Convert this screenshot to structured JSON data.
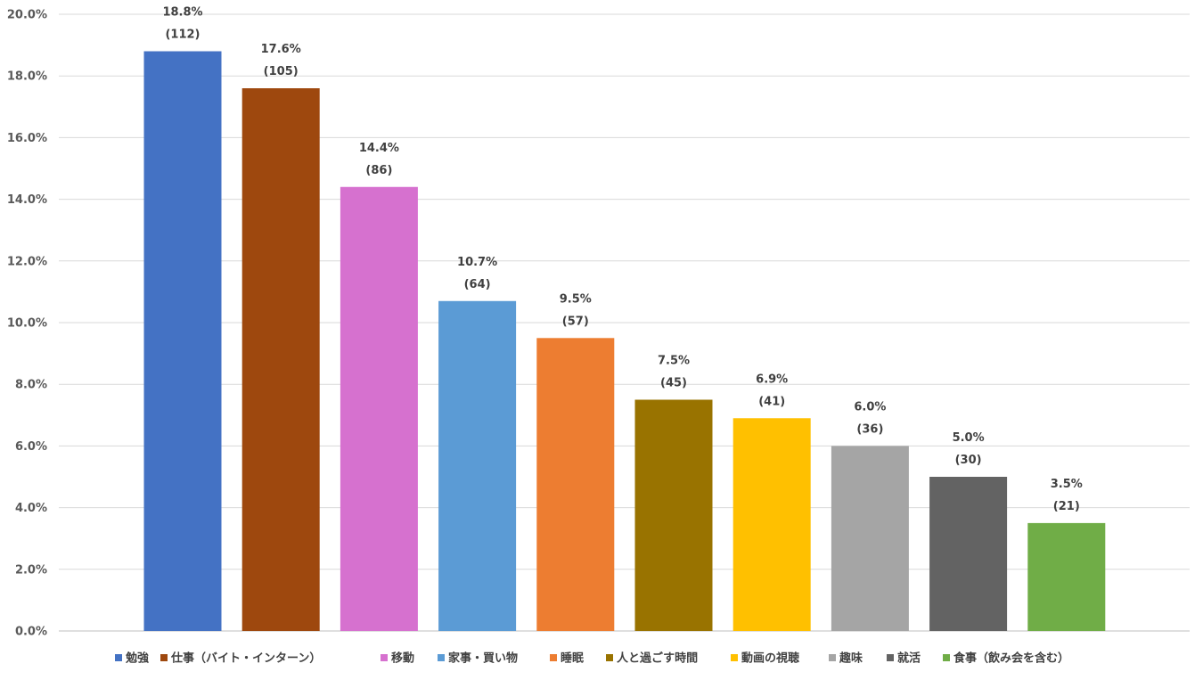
{
  "chart_data": {
    "type": "bar",
    "categories": [
      "勉強",
      "仕事（バイト・インターン）",
      "移動",
      "家事・買い物",
      "睡眠",
      "人と過ごす時間",
      "動画の視聴",
      "趣味",
      "就活",
      "食事（飲み会を含む）"
    ],
    "values": [
      18.8,
      17.6,
      14.4,
      10.7,
      9.5,
      7.5,
      6.9,
      6.0,
      5.0,
      3.5
    ],
    "counts": [
      112,
      105,
      86,
      64,
      57,
      45,
      41,
      36,
      30,
      21
    ],
    "value_labels": [
      "18.8%",
      "17.6%",
      "14.4%",
      "10.7%",
      "9.5%",
      "7.5%",
      "6.9%",
      "6.0%",
      "5.0%",
      "3.5%"
    ],
    "count_labels": [
      "(112)",
      "(105)",
      "(86)",
      "(64)",
      "(57)",
      "(45)",
      "(41)",
      "(36)",
      "(30)",
      "(21)"
    ],
    "colors": [
      "#4472c4",
      "#9e480e",
      "#d671cf",
      "#5b9bd5",
      "#ed7d31",
      "#997300",
      "#ffc000",
      "#a5a5a5",
      "#636363",
      "#70ad47"
    ],
    "ylim": [
      0,
      20
    ],
    "yticks": [
      0,
      2,
      4,
      6,
      8,
      10,
      12,
      14,
      16,
      18,
      20
    ],
    "ytick_labels": [
      "0.0%",
      "2.0%",
      "4.0%",
      "6.0%",
      "8.0%",
      "10.0%",
      "12.0%",
      "14.0%",
      "16.0%",
      "18.0%",
      "20.0%"
    ],
    "grid": true,
    "legend_position": "bottom",
    "title": "",
    "xlabel": "",
    "ylabel": ""
  }
}
